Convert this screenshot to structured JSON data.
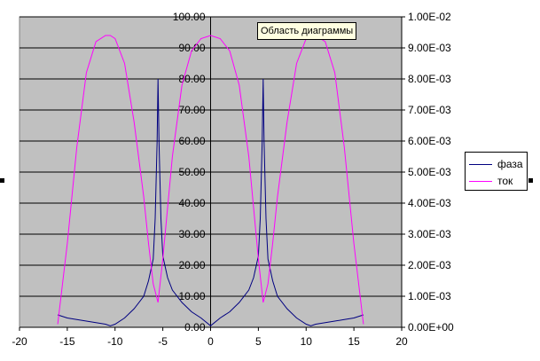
{
  "chart_data": {
    "type": "line",
    "x_axis": {
      "range": [
        -20,
        20
      ],
      "ticks": [
        "-20",
        "-15",
        "-10",
        "-5",
        "0",
        "5",
        "10",
        "15",
        "20"
      ]
    },
    "y_left": {
      "range": [
        0,
        100
      ],
      "ticks": [
        "0.00",
        "10.00",
        "20.00",
        "30.00",
        "40.00",
        "50.00",
        "60.00",
        "70.00",
        "80.00",
        "90.00",
        "100.00"
      ]
    },
    "y_right": {
      "range": [
        0,
        0.01
      ],
      "ticks": [
        "0.00E+00",
        "1.00E-03",
        "2.00E-03",
        "3.00E-03",
        "4.00E-03",
        "5.00E-03",
        "6.00E-03",
        "7.00E-03",
        "8.00E-03",
        "9.00E-03",
        "1.00E-02"
      ]
    },
    "grid": "horizontal",
    "plot_background": "#c0c0c0",
    "legend_position": "right",
    "series": [
      {
        "name": "фаза",
        "color": "#000080",
        "axis": "left",
        "x": [
          -16,
          -15,
          -14,
          -13,
          -12,
          -11,
          -10.5,
          -10,
          -9,
          -8,
          -7,
          -6.5,
          -6,
          -5.8,
          -5.6,
          -5.5,
          -5.4,
          -5.2,
          -5,
          -4.5,
          -4,
          -3,
          -2,
          -1,
          0,
          1,
          2,
          3,
          4,
          4.5,
          5,
          5.2,
          5.4,
          5.5,
          5.6,
          5.8,
          6,
          6.5,
          7,
          8,
          9,
          10,
          10.5,
          11,
          12,
          13,
          14,
          15,
          16
        ],
        "y": [
          4,
          3,
          2.5,
          2,
          1.5,
          1,
          0.5,
          1,
          3,
          6,
          10,
          15,
          22,
          35,
          60,
          80,
          60,
          35,
          23,
          16,
          12,
          8,
          5,
          3,
          0.5,
          3,
          5,
          8,
          12,
          16,
          23,
          35,
          60,
          80,
          60,
          35,
          22,
          15,
          10,
          6,
          3,
          1,
          0.5,
          1,
          1.5,
          2,
          2.5,
          3,
          4
        ]
      },
      {
        "name": "ток",
        "color": "#ff00ff",
        "axis": "right",
        "x": [
          -16,
          -15,
          -14,
          -13,
          -12,
          -11,
          -10.5,
          -10,
          -9,
          -8,
          -7,
          -6.5,
          -6,
          -5.5,
          -5,
          -4,
          -3,
          -2,
          -1,
          0,
          1,
          2,
          3,
          4,
          5,
          5.5,
          6,
          6.5,
          7,
          8,
          9,
          10,
          10.5,
          11,
          12,
          13,
          14,
          15,
          16
        ],
        "y": [
          0.0001,
          0.0027,
          0.0058,
          0.0082,
          0.0092,
          0.0094,
          0.0094,
          0.0093,
          0.0085,
          0.0066,
          0.0042,
          0.0027,
          0.0014,
          0.0008,
          0.0022,
          0.0055,
          0.0078,
          0.0089,
          0.0093,
          0.0094,
          0.0093,
          0.0089,
          0.0078,
          0.0055,
          0.0022,
          0.0008,
          0.0014,
          0.0027,
          0.0042,
          0.0066,
          0.0085,
          0.0093,
          0.0094,
          0.0094,
          0.0092,
          0.0082,
          0.0058,
          0.0027,
          0.0001
        ]
      }
    ]
  },
  "legend": {
    "items": [
      {
        "label": "фаза",
        "color": "#000080"
      },
      {
        "label": "ток",
        "color": "#ff00ff"
      }
    ]
  },
  "tooltip": "Область диаграммы"
}
